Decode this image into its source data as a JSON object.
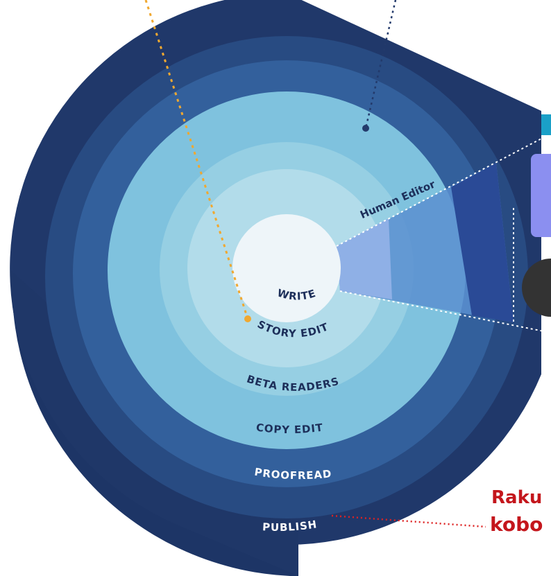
{
  "diagram": {
    "stages": [
      "PUBLISH",
      "PROOFREAD",
      "COPY EDIT",
      "BETA READERS",
      "STORY EDIT",
      "WRITE"
    ],
    "highlight": "Human Editor",
    "partners": [
      "Raku",
      "kobo"
    ]
  }
}
